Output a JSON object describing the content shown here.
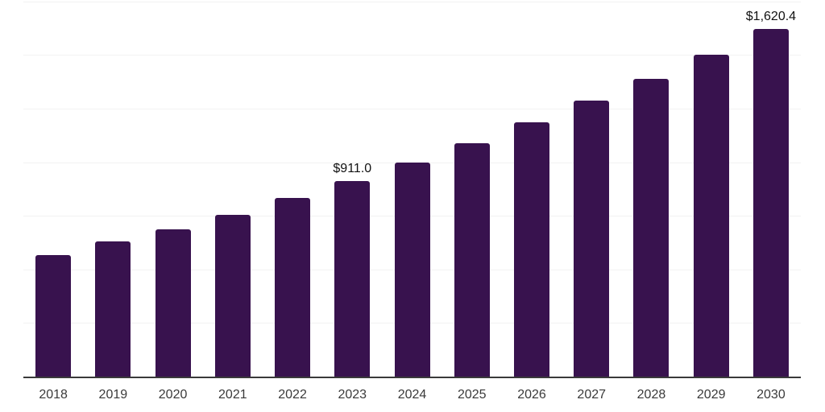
{
  "chart_data": {
    "type": "bar",
    "title": "",
    "xlabel": "",
    "ylabel": "",
    "categories": [
      "2018",
      "2019",
      "2020",
      "2021",
      "2022",
      "2023",
      "2024",
      "2025",
      "2026",
      "2027",
      "2028",
      "2029",
      "2030"
    ],
    "values": [
      568,
      632,
      686,
      755,
      833,
      911.0,
      998,
      1088,
      1185,
      1286,
      1390,
      1502,
      1620.4
    ],
    "data_labels": [
      {
        "index": 5,
        "text": "$911.0"
      },
      {
        "index": 12,
        "text": "$1,620.4"
      }
    ],
    "ylim": [
      0,
      1756
    ],
    "gridline_step": 250,
    "grid": true,
    "legend": false,
    "colors": {
      "bar": "#38124e",
      "grid": "#f2f2f2",
      "axis": "#3a3a3a",
      "tick_text": "#3a3a3a",
      "label_text": "#111111",
      "background": "#ffffff"
    }
  }
}
